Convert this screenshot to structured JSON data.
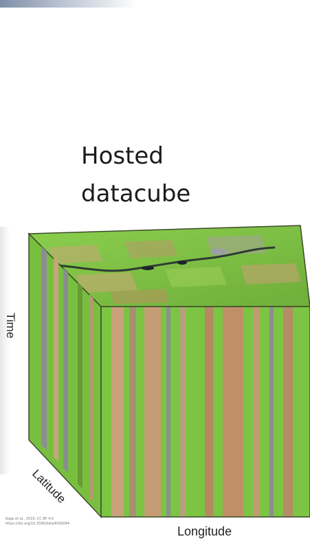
{
  "heading": {
    "line1": "Hosted",
    "line2": "datacube"
  },
  "axes": {
    "time": "Time",
    "latitude": "Latitude",
    "longitude": "Longitude"
  },
  "credit": {
    "line1": "Kopp et al., 2019, CC BY 4.0",
    "line2": "https://doi.org/10.3390/data4030094"
  },
  "colors": {
    "top_face_green": "#7fc042",
    "front_green": "#7cc443",
    "stripe_tan": "#c59a72",
    "stripe_gray": "#8e8e92",
    "edge_dark": "#3c4a2a"
  }
}
